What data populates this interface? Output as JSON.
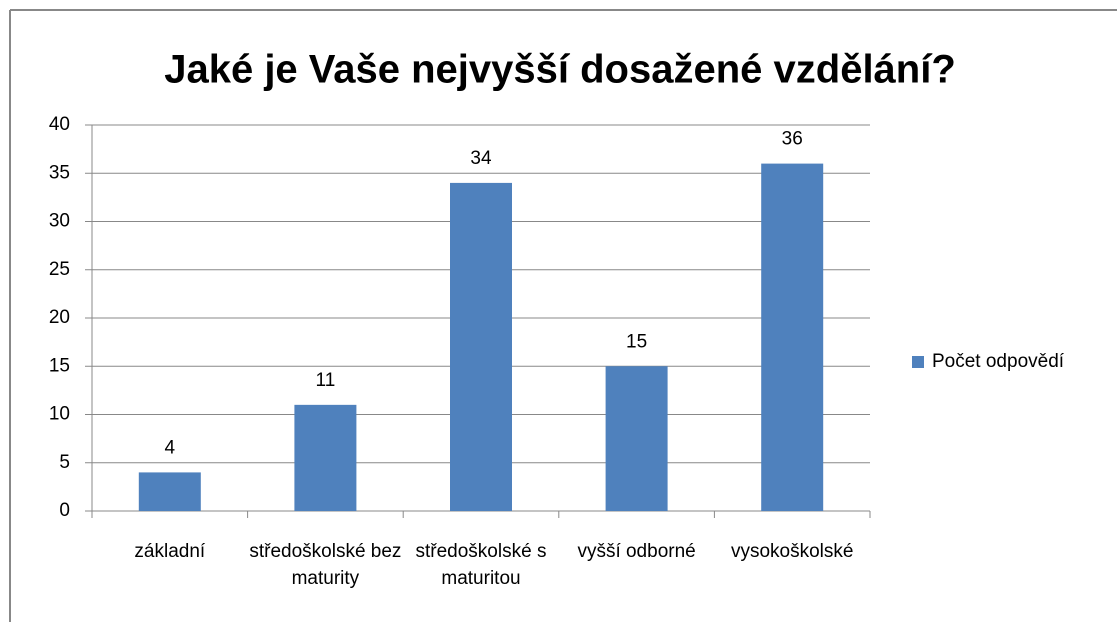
{
  "chart_data": {
    "type": "bar",
    "title": "Jaké je Vaše nejvyšší dosažené vzdělání?",
    "categories": [
      "základní",
      "středoškolské bez maturity",
      "středoškolské s maturitou",
      "vyšší odborné",
      "vysokoškolské"
    ],
    "series": [
      {
        "name": "Počet odpovědí",
        "color": "#4f81bd",
        "values": [
          4,
          11,
          34,
          15,
          36
        ]
      }
    ],
    "ylim": [
      0,
      40
    ],
    "yticks": [
      0,
      5,
      10,
      15,
      20,
      25,
      30,
      35,
      40
    ],
    "grid": true,
    "legend": "right"
  }
}
